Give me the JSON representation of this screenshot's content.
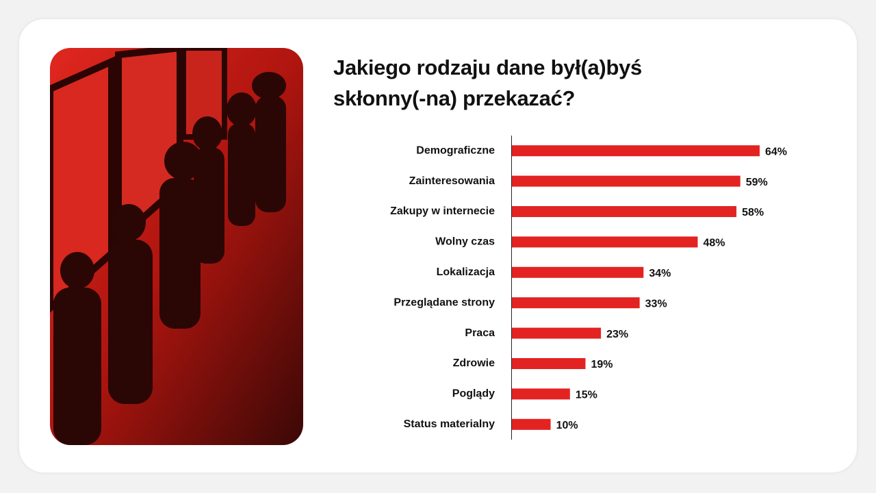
{
  "chart_data": {
    "type": "bar",
    "orientation": "horizontal",
    "title": "Jakiego rodzaju dane był(a)byś skłonny(-na) przekazać?",
    "categories": [
      "Demograficzne",
      "Zainteresowania",
      "Zakupy w internecie",
      "Wolny czas",
      "Lokalizacja",
      "Przeglądane strony",
      "Praca",
      "Zdrowie",
      "Poglądy",
      "Status materialny"
    ],
    "values": [
      64,
      59,
      58,
      48,
      34,
      33,
      23,
      19,
      15,
      10
    ],
    "value_labels": [
      "64%",
      "59%",
      "58%",
      "48%",
      "34%",
      "33%",
      "23%",
      "19%",
      "15%",
      "10%"
    ],
    "color": "#e32322"
  }
}
